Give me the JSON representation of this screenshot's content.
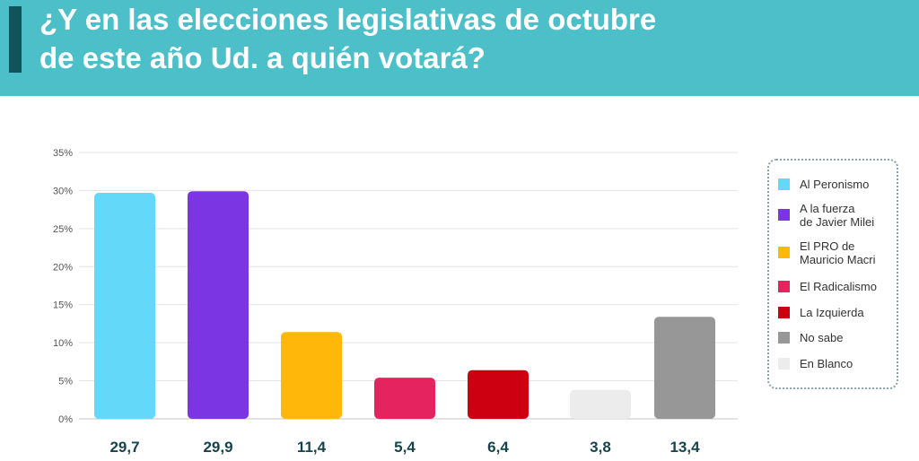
{
  "header": {
    "title_line1": "¿Y en las elecciones legislativas de octubre",
    "title_line2": "de este año Ud. a quién votará?",
    "accent_color": "#11535a",
    "background_color": "#4dbfc8"
  },
  "chart_data": {
    "type": "bar",
    "categories": [
      "Al Peronismo",
      "A la fuerza\nde Javier Milei",
      "El PRO de\nMauricio Macri",
      "El Radicalismo",
      "La Izquierda",
      "En Blanco",
      "No sabe"
    ],
    "values": [
      29.7,
      29.9,
      11.4,
      5.4,
      6.4,
      3.8,
      13.4
    ],
    "value_labels": [
      "29,7",
      "29,9",
      "11,4",
      "5,4",
      "6,4",
      "3,8",
      "13,4"
    ],
    "colors": [
      "#63d8f8",
      "#7b35e3",
      "#ffb80a",
      "#e5245f",
      "#cc0011",
      "#ececec",
      "#979797"
    ],
    "ylim": [
      0,
      35
    ],
    "yticks": [
      0,
      5,
      10,
      15,
      20,
      25,
      30,
      35
    ],
    "ytick_labels": [
      "0%",
      "5%",
      "10%",
      "15%",
      "20%",
      "25%",
      "30%",
      "35%"
    ],
    "grid": true,
    "legend_position": "right"
  },
  "legend": {
    "items": [
      {
        "label": "Al Peronismo",
        "color": "#63d8f8"
      },
      {
        "label": "A la fuerza\nde Javier Milei",
        "color": "#7b35e3"
      },
      {
        "label": "El PRO de\nMauricio Macri",
        "color": "#ffb80a"
      },
      {
        "label": "El Radicalismo",
        "color": "#e5245f"
      },
      {
        "label": "La Izquierda",
        "color": "#cc0011"
      },
      {
        "label": "No sabe",
        "color": "#979797"
      },
      {
        "label": "En Blanco",
        "color": "#ececec"
      }
    ]
  }
}
